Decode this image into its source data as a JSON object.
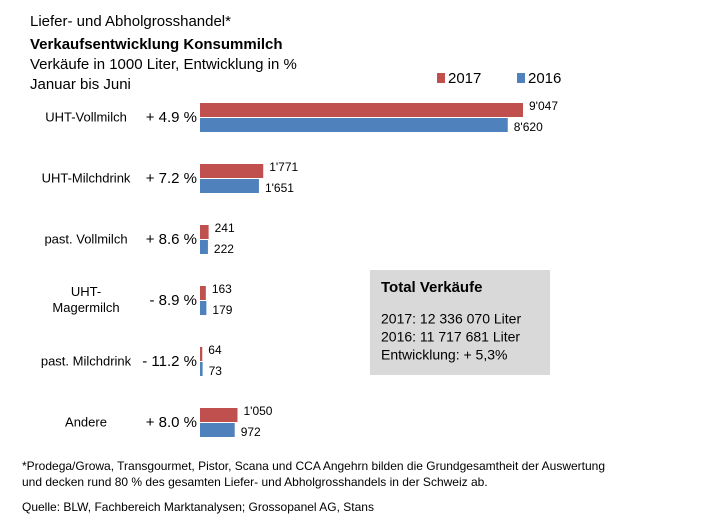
{
  "chart_data": {
    "type": "bar",
    "orientation": "horizontal",
    "supertitle": "Liefer- und Abholgrosshandel*",
    "title": "Verkaufsentwicklung Konsummilch",
    "subtitle": "Verkäufe in 1000 Liter, Entwicklung in %",
    "period": "Januar bis Juni",
    "categories": [
      "UHT-Vollmilch",
      "UHT-Milchdrink",
      "past. Vollmilch",
      "UHT-\nMagermilch",
      "past. Milchdrink",
      "Andere"
    ],
    "changes": [
      "+  4.9 %",
      "+  7.2 %",
      "+  8.6 %",
      "-  8.9 %",
      "- 11.2 %",
      "+ 8.0 %"
    ],
    "series": [
      {
        "name": "2017",
        "color": "#c0504d",
        "values": [
          9047,
          1771,
          241,
          163,
          64,
          1050
        ],
        "value_labels": [
          "9'047",
          "1'771",
          "241",
          "163",
          "64",
          "1'050"
        ]
      },
      {
        "name": "2016",
        "color": "#4f81bd",
        "values": [
          8620,
          1651,
          222,
          179,
          73,
          972
        ],
        "value_labels": [
          "8'620",
          "1'651",
          "222",
          "179",
          "73",
          "972"
        ]
      }
    ],
    "summary": {
      "title": "Total Verkäufe",
      "lines": [
        "2017: 12 336 070 Liter",
        "2016: 11 717 681 Liter",
        "Entwicklung: + 5,3%"
      ]
    },
    "footnote": [
      "*Prodega/Growa, Transgourmet, Pistor, Scana und CCA Angehrn bilden die Grundgesamtheit der Auswertung",
      "und decken rund 80 % des gesamten Liefer- und Abholgrosshandels in der Schweiz ab."
    ],
    "source": "Quelle: BLW, Fachbereich Marktanalysen; Grossopanel AG, Stans",
    "legend": "top-right"
  }
}
